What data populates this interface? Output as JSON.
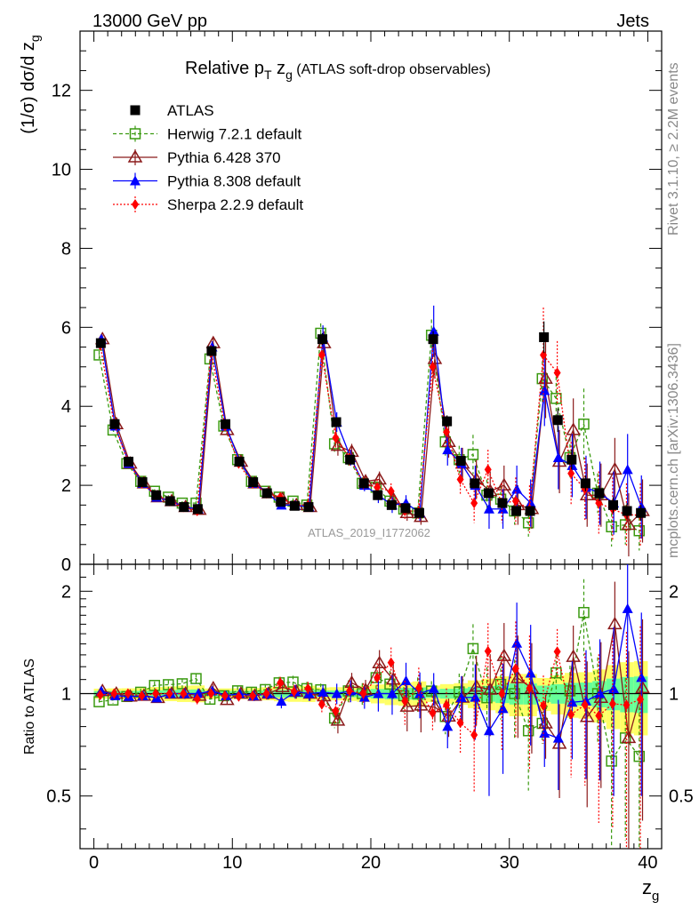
{
  "header": {
    "left": "13000 GeV pp",
    "right": "Jets"
  },
  "title": {
    "main": "Relative p",
    "sub_T": "T",
    "mid": " z",
    "sub_g": "g",
    "paren": " (ATLAS soft-drop observables)"
  },
  "ylabel": {
    "text": "(1/σ) dσ/d z",
    "sub": "g"
  },
  "ratio_ylabel": "Ratio to ATLAS",
  "xlabel": {
    "text": "z",
    "sub": "g"
  },
  "watermark": "ATLAS_2019_I1772062",
  "side_top": "Rivet 3.1.10, ≥ 2.2M events",
  "side_bottom": "mcplots.cern.ch [arXiv:1306.3436]",
  "colors": {
    "atlas": "#000000",
    "herwig": "#3a9a10",
    "pythia6": "#8b1a1a",
    "pythia8": "#0000ff",
    "sherpa": "#ff0000",
    "band_yellow": "#ffff66",
    "band_green": "#66ff99"
  },
  "chart_data": {
    "type": "scatter",
    "x": [
      0.5,
      1.5,
      2.5,
      3.5,
      4.5,
      5.5,
      6.5,
      7.5,
      8.5,
      9.5,
      10.5,
      11.5,
      12.5,
      13.5,
      14.5,
      15.5,
      16.5,
      17.5,
      18.5,
      19.5,
      20.5,
      21.5,
      22.5,
      23.5,
      24.5,
      25.5,
      26.5,
      27.5,
      28.5,
      29.5,
      30.5,
      31.5,
      32.5,
      33.5,
      34.5,
      35.5,
      36.5,
      37.5,
      38.5,
      39.5
    ],
    "xlim": [
      -1,
      41
    ],
    "ylim": [
      0,
      13.5
    ],
    "ratio_ylim": [
      0.35,
      2.4
    ],
    "xticks": [
      0,
      10,
      20,
      30,
      40
    ],
    "yticks": [
      0,
      2,
      4,
      6,
      8,
      10,
      12
    ],
    "ratio_yticks": [
      0.5,
      1,
      2
    ],
    "ratio_ticklabels": [
      "0.5",
      "1",
      "2"
    ],
    "legend_position": "top-left",
    "series": [
      {
        "name": "ATLAS",
        "key": "atlas",
        "values": [
          5.6,
          3.55,
          2.6,
          2.08,
          1.75,
          1.6,
          1.45,
          1.4,
          5.4,
          3.55,
          2.6,
          2.08,
          1.8,
          1.58,
          1.48,
          1.45,
          5.7,
          3.6,
          2.65,
          2.05,
          1.75,
          1.5,
          1.42,
          1.3,
          5.7,
          3.62,
          2.62,
          2.05,
          1.8,
          1.55,
          1.35,
          1.35,
          5.75,
          3.65,
          2.65,
          2.05,
          1.8,
          1.5,
          1.35,
          1.3
        ],
        "errors": [
          0.12,
          0.08,
          0.06,
          0.05,
          0.05,
          0.05,
          0.05,
          0.05,
          0.12,
          0.08,
          0.06,
          0.05,
          0.05,
          0.05,
          0.05,
          0.05,
          0.15,
          0.1,
          0.08,
          0.07,
          0.07,
          0.07,
          0.07,
          0.07,
          0.2,
          0.15,
          0.12,
          0.12,
          0.12,
          0.12,
          0.12,
          0.12,
          0.4,
          0.3,
          0.25,
          0.2,
          0.2,
          0.2,
          0.2,
          0.2
        ]
      },
      {
        "name": "Herwig 7.2.1 default",
        "key": "herwig",
        "values": [
          5.3,
          3.4,
          2.55,
          2.1,
          1.85,
          1.7,
          1.55,
          1.55,
          5.2,
          3.5,
          2.65,
          2.1,
          1.85,
          1.7,
          1.6,
          1.5,
          5.85,
          3.05,
          2.7,
          2.05,
          1.95,
          1.6,
          1.4,
          1.3,
          5.8,
          3.1,
          2.65,
          2.78,
          1.75,
          1.65,
          1.35,
          1.05,
          4.7,
          4.2,
          2.7,
          3.55,
          1.8,
          0.95,
          1.0,
          0.85
        ],
        "errors": [
          0.1,
          0.08,
          0.06,
          0.05,
          0.05,
          0.05,
          0.05,
          0.05,
          0.15,
          0.1,
          0.08,
          0.07,
          0.07,
          0.07,
          0.07,
          0.07,
          0.25,
          0.2,
          0.2,
          0.15,
          0.15,
          0.15,
          0.15,
          0.15,
          0.4,
          0.35,
          0.35,
          0.5,
          0.4,
          0.35,
          0.35,
          0.35,
          0.6,
          0.55,
          0.5,
          0.9,
          0.5,
          0.5,
          0.5,
          0.5
        ]
      },
      {
        "name": "Pythia 6.428 370",
        "key": "pythia6",
        "values": [
          5.7,
          3.55,
          2.55,
          2.05,
          1.7,
          1.6,
          1.45,
          1.38,
          5.6,
          3.4,
          2.6,
          2.05,
          1.8,
          1.65,
          1.5,
          1.45,
          5.6,
          3.0,
          2.85,
          2.1,
          2.15,
          1.65,
          1.3,
          1.2,
          5.2,
          3.1,
          2.55,
          2.15,
          1.85,
          2.0,
          1.5,
          1.4,
          4.7,
          2.6,
          3.4,
          1.75,
          1.75,
          2.4,
          1.0,
          1.35
        ],
        "errors": [
          0.1,
          0.08,
          0.06,
          0.05,
          0.05,
          0.05,
          0.05,
          0.05,
          0.15,
          0.1,
          0.08,
          0.07,
          0.07,
          0.07,
          0.07,
          0.07,
          0.3,
          0.25,
          0.2,
          0.15,
          0.2,
          0.2,
          0.2,
          0.2,
          0.5,
          0.4,
          0.4,
          0.5,
          0.5,
          0.5,
          0.5,
          0.5,
          1.0,
          0.8,
          0.8,
          0.8,
          0.8,
          0.8,
          0.8,
          0.8
        ]
      },
      {
        "name": "Pythia 8.308 default",
        "key": "pythia8",
        "values": [
          5.7,
          3.5,
          2.55,
          2.05,
          1.7,
          1.6,
          1.45,
          1.4,
          5.5,
          3.5,
          2.6,
          2.05,
          1.8,
          1.5,
          1.5,
          1.45,
          5.75,
          3.6,
          2.7,
          2.0,
          1.75,
          1.5,
          1.55,
          1.3,
          5.9,
          2.9,
          2.55,
          2.0,
          1.4,
          1.4,
          1.9,
          1.55,
          4.4,
          2.7,
          2.5,
          1.95,
          1.8,
          1.55,
          2.4,
          1.45
        ],
        "errors": [
          0.1,
          0.08,
          0.06,
          0.05,
          0.05,
          0.05,
          0.05,
          0.05,
          0.15,
          0.1,
          0.08,
          0.07,
          0.07,
          0.07,
          0.07,
          0.07,
          0.3,
          0.25,
          0.2,
          0.15,
          0.2,
          0.2,
          0.2,
          0.2,
          0.65,
          0.4,
          0.4,
          0.5,
          0.5,
          0.5,
          0.6,
          0.6,
          0.9,
          0.8,
          0.8,
          0.8,
          0.8,
          0.8,
          0.9,
          0.8
        ]
      },
      {
        "name": "Sherpa 2.2.9 default",
        "key": "sherpa",
        "values": [
          5.55,
          3.55,
          2.6,
          2.05,
          1.75,
          1.6,
          1.45,
          1.35,
          5.4,
          3.5,
          2.55,
          2.05,
          1.8,
          1.7,
          1.5,
          1.5,
          5.3,
          3.2,
          2.7,
          2.05,
          1.95,
          1.85,
          1.35,
          1.35,
          5.0,
          3.35,
          2.15,
          1.55,
          2.4,
          1.55,
          1.6,
          1.4,
          5.3,
          4.85,
          2.3,
          1.9,
          1.55,
          1.4,
          1.25,
          1.25
        ],
        "errors": [
          0.1,
          0.08,
          0.06,
          0.05,
          0.05,
          0.05,
          0.05,
          0.05,
          0.15,
          0.1,
          0.08,
          0.07,
          0.07,
          0.07,
          0.07,
          0.07,
          0.3,
          0.25,
          0.2,
          0.15,
          0.2,
          0.2,
          0.2,
          0.2,
          0.6,
          0.4,
          0.4,
          0.5,
          0.5,
          0.5,
          0.6,
          0.6,
          1.2,
          0.8,
          0.8,
          0.8,
          0.8,
          0.8,
          0.8,
          0.8
        ]
      }
    ]
  }
}
